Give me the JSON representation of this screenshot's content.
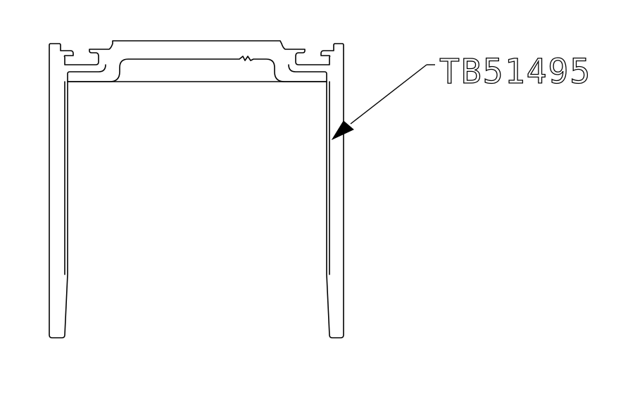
{
  "drawing": {
    "part_number": "TB51495",
    "line_color": "#000000",
    "background_color": "#ffffff"
  }
}
